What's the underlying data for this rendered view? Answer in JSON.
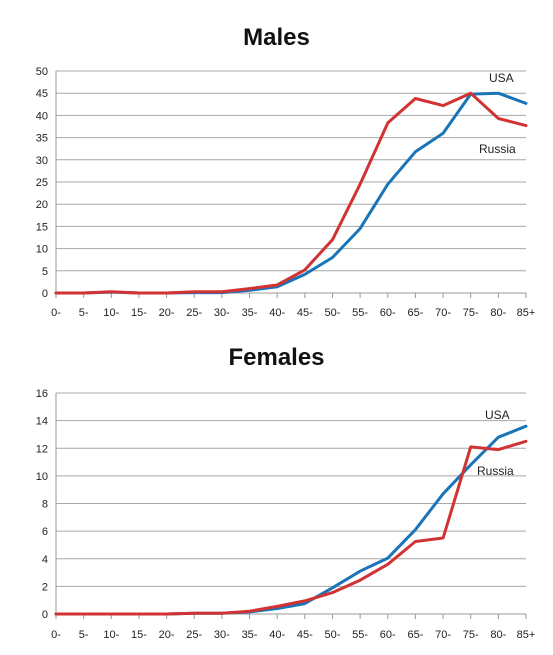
{
  "chart_data": [
    {
      "type": "line",
      "title": "Males",
      "xlabel": "",
      "ylabel": "",
      "categories": [
        "0-",
        "5-",
        "10-",
        "15-",
        "20-",
        "25-",
        "30-",
        "35-",
        "40-",
        "45-",
        "50-",
        "55-",
        "60-",
        "65-",
        "70-",
        "75-",
        "80-",
        "85+"
      ],
      "ylim": [
        0,
        50
      ],
      "yticks": [
        0,
        5,
        10,
        15,
        20,
        25,
        30,
        35,
        40,
        45,
        50
      ],
      "grid": true,
      "series": [
        {
          "name": "USA",
          "color": "#1a74b8",
          "values": [
            0,
            0,
            0.2,
            0,
            0,
            0.1,
            0.1,
            0.6,
            1.4,
            4.2,
            8,
            14.5,
            24.5,
            31.8,
            36,
            44.8,
            45,
            42.7
          ]
        },
        {
          "name": "Russia",
          "color": "#d23232",
          "values": [
            0,
            0,
            0.3,
            0,
            0,
            0.3,
            0.3,
            1,
            1.8,
            5.2,
            12,
            24.5,
            38.3,
            43.8,
            42.2,
            45,
            39.3,
            37.7
          ]
        }
      ]
    },
    {
      "type": "line",
      "title": "Females",
      "xlabel": "",
      "ylabel": "",
      "categories": [
        "0-",
        "5-",
        "10-",
        "15-",
        "20-",
        "25-",
        "30-",
        "35-",
        "40-",
        "45-",
        "50-",
        "55-",
        "60-",
        "65-",
        "70-",
        "75-",
        "80-",
        "85+"
      ],
      "ylim": [
        0,
        16
      ],
      "yticks": [
        0,
        2,
        4,
        6,
        8,
        10,
        12,
        14,
        16
      ],
      "grid": true,
      "series": [
        {
          "name": "USA",
          "color": "#1a74b8",
          "values": [
            0,
            0,
            0,
            0,
            0,
            0.05,
            0.05,
            0.15,
            0.4,
            0.75,
            1.9,
            3.1,
            4.05,
            6.1,
            8.7,
            10.8,
            12.8,
            13.6
          ]
        },
        {
          "name": "Russia",
          "color": "#d23232",
          "values": [
            0,
            0,
            0,
            0,
            0,
            0.05,
            0.05,
            0.2,
            0.55,
            0.95,
            1.55,
            2.45,
            3.6,
            5.25,
            5.5,
            12.1,
            11.9,
            12.5
          ]
        }
      ]
    }
  ]
}
